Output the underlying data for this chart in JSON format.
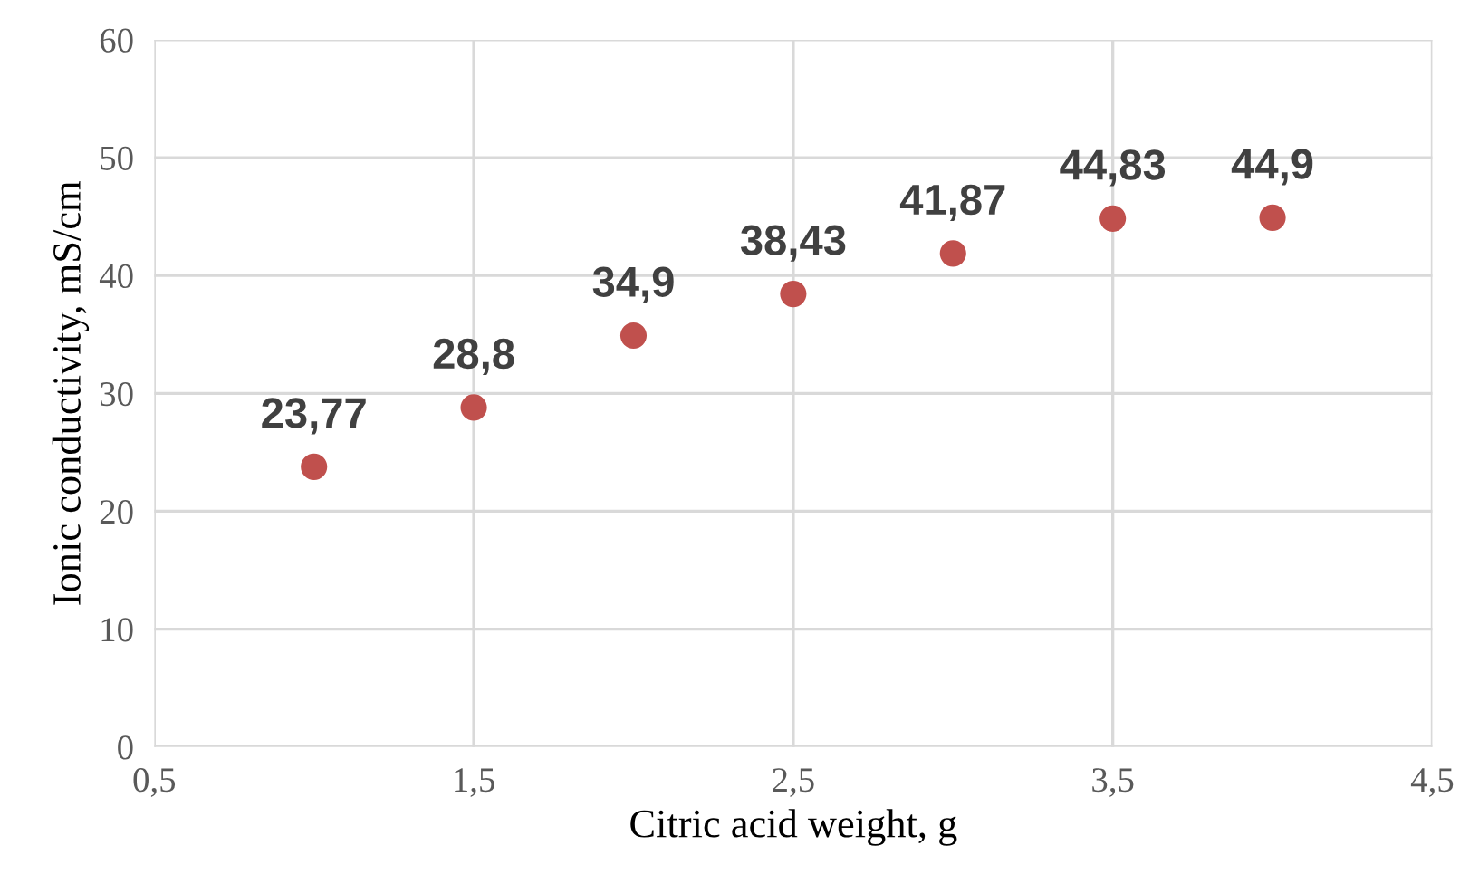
{
  "chart_data": {
    "type": "scatter",
    "xlabel": "Citric acid weight, g",
    "ylabel": "Ionic conductivity, mS/cm",
    "x": [
      1,
      1.5,
      2,
      2.5,
      3,
      3.5,
      4
    ],
    "series": [
      {
        "color": "#c0504d",
        "values": [
          23.77,
          28.8,
          34.9,
          38.43,
          41.87,
          44.83,
          44.9
        ],
        "value_labels": [
          "23,77",
          "28,8",
          "34,9",
          "38,43",
          "41,87",
          "44,83",
          "44,9"
        ]
      }
    ],
    "xlim": [
      0.5,
      4.5
    ],
    "xticks": [
      {
        "value": 0.5,
        "label": "0,5"
      },
      {
        "value": 1.5,
        "label": "1,5"
      },
      {
        "value": 2.5,
        "label": "2,5"
      },
      {
        "value": 3.5,
        "label": "3,5"
      },
      {
        "value": 4.5,
        "label": "4,5"
      }
    ],
    "ylim": [
      0,
      60
    ],
    "yticks": [
      0,
      10,
      20,
      30,
      40,
      50,
      60
    ],
    "grid": true,
    "marker": "circle",
    "legend": false
  }
}
